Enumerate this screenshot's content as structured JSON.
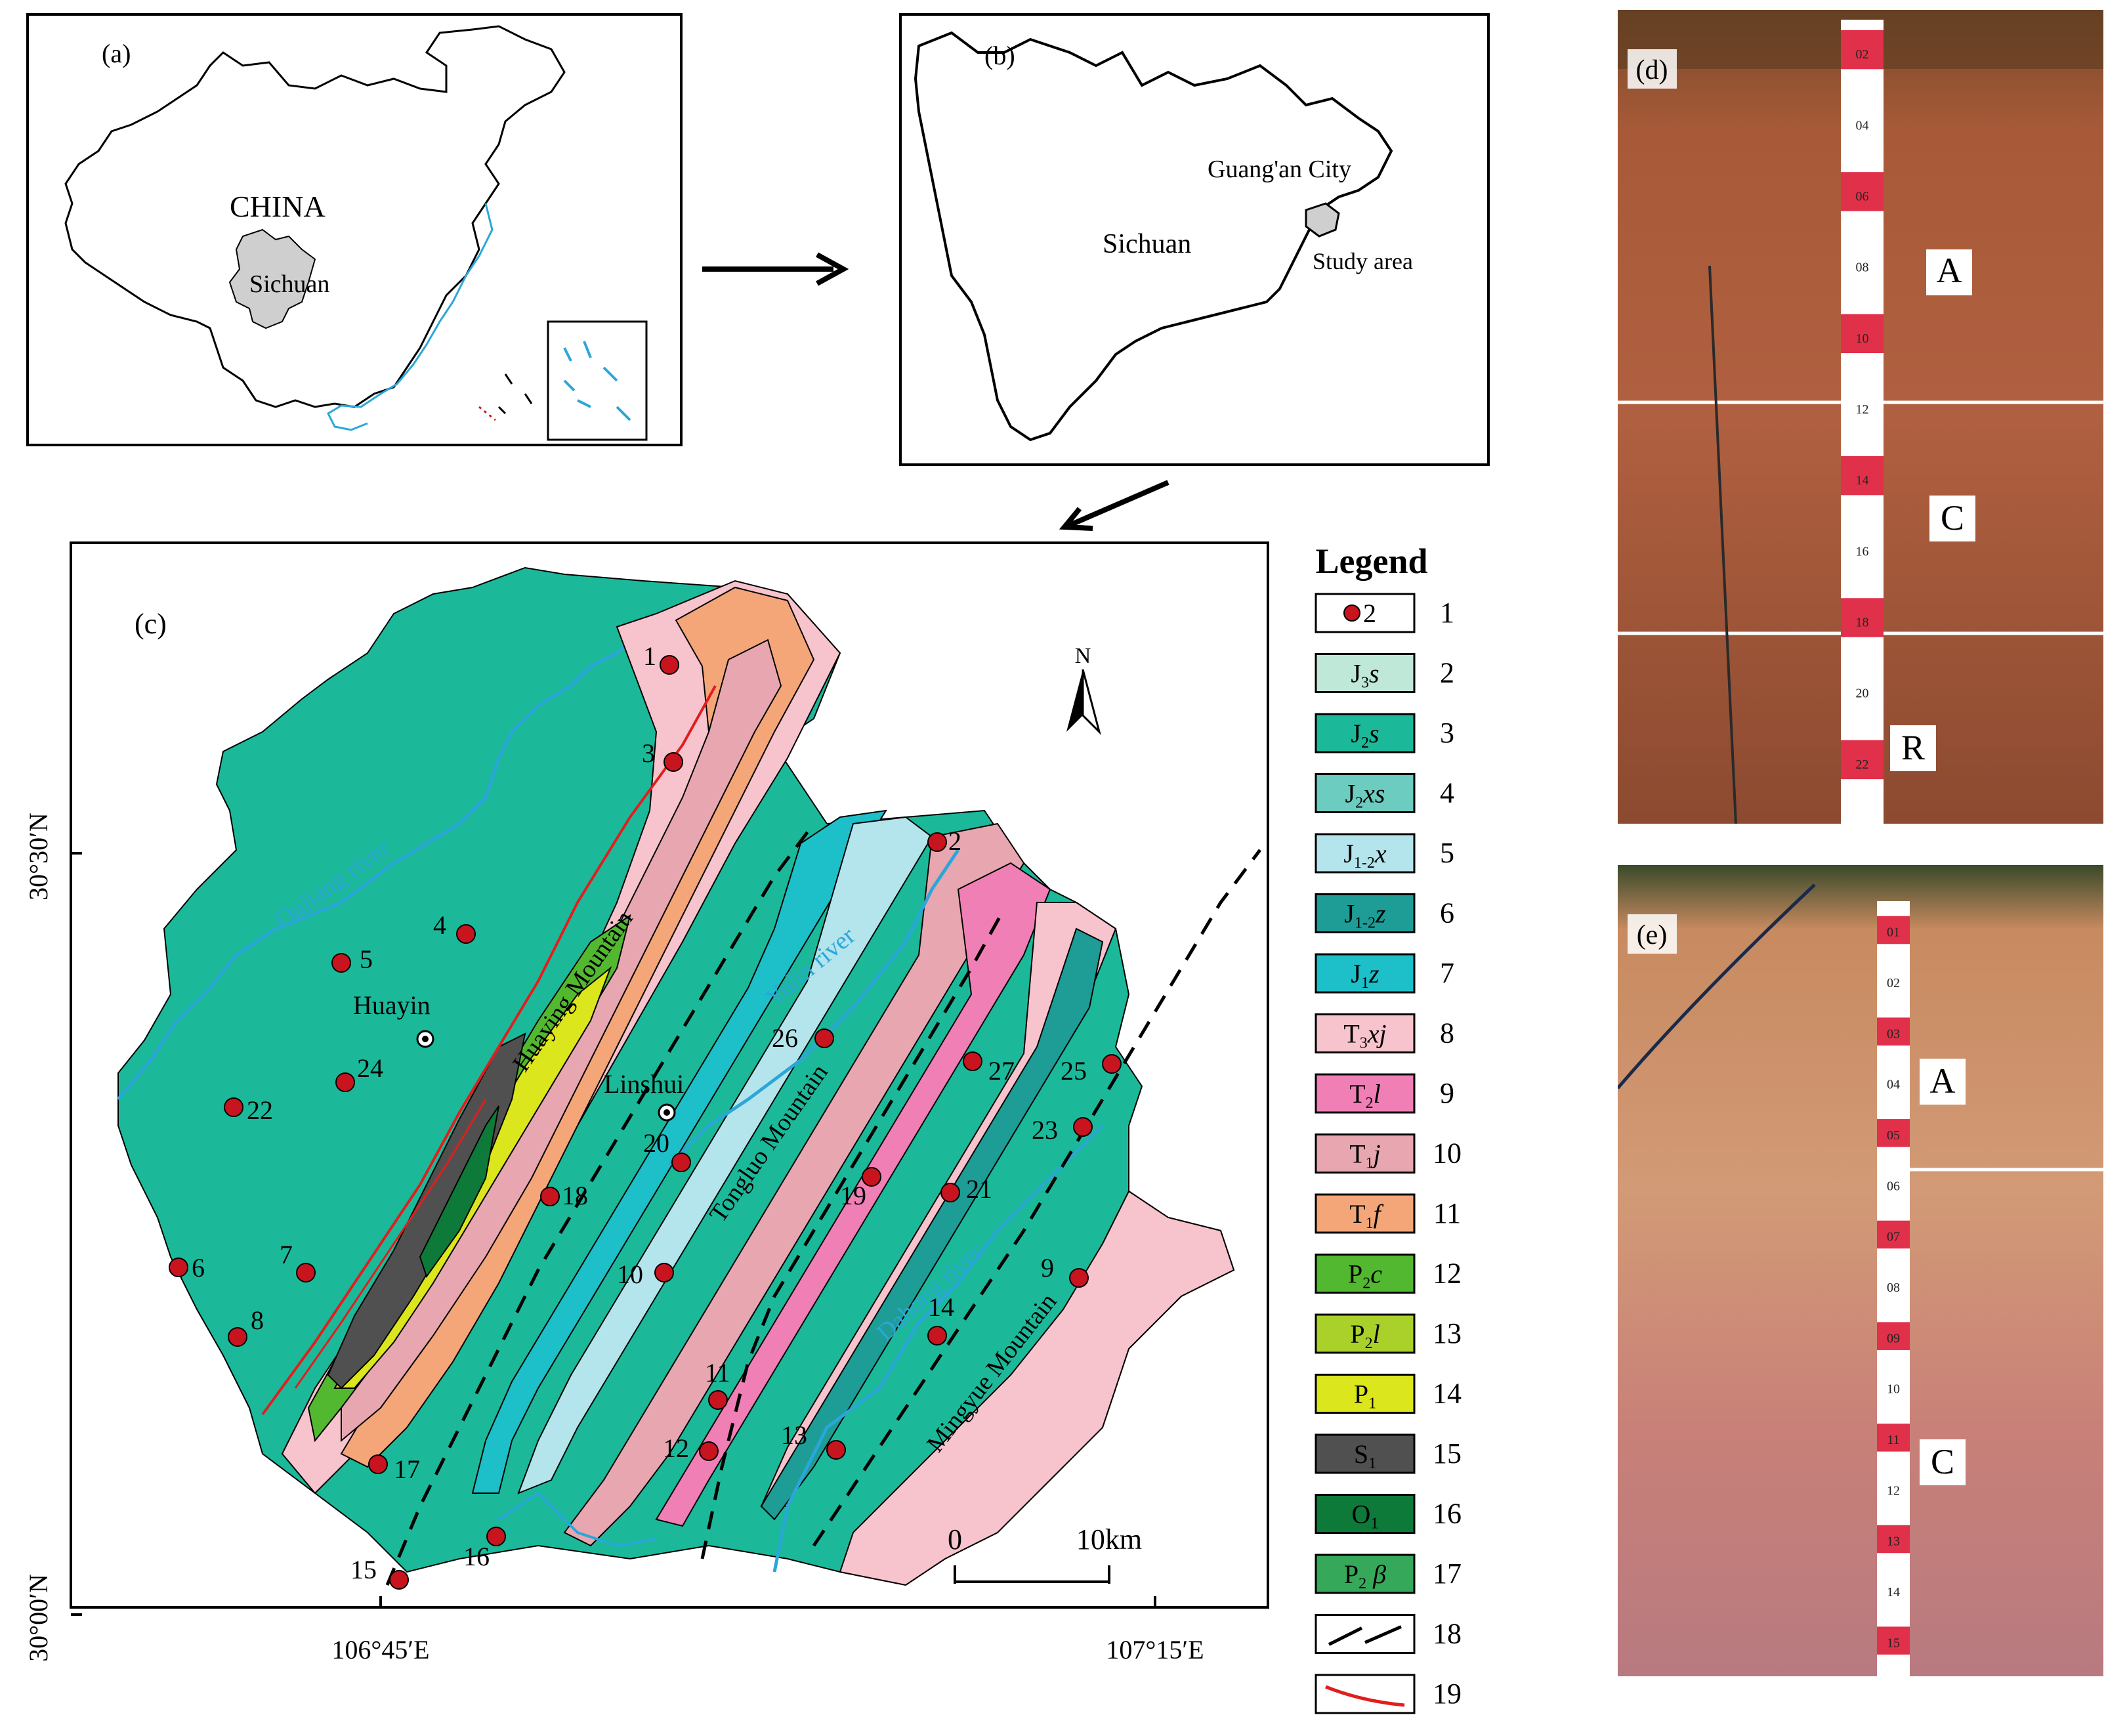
{
  "panel_a": {
    "label": "(a)",
    "country": "CHINA",
    "province": "Sichuan"
  },
  "panel_b": {
    "label": "(b)",
    "province": "Sichuan",
    "city": "Guang'an City",
    "study_area": "Study area"
  },
  "panel_c": {
    "label": "(c)",
    "north": "N",
    "lat_top": "30°30′N",
    "lat_bottom": "30°00′N",
    "lon_left": "106°45′E",
    "lon_right": "107°15′E",
    "scale_zero": "0",
    "scale_len": "10km",
    "rivers": [
      "Qujiang river",
      "Yulin river",
      "Dahong river"
    ],
    "mountains": [
      "Huaying Mountain",
      "Tongluo Mountain",
      "Mingyue Mountain"
    ],
    "towns": [
      "Huayin",
      "Linshui"
    ],
    "sites": [
      "1",
      "2",
      "3",
      "4",
      "5",
      "6",
      "7",
      "8",
      "9",
      "10",
      "11",
      "12",
      "13",
      "14",
      "15",
      "16",
      "17",
      "18",
      "19",
      "20",
      "21",
      "22",
      "23",
      "24",
      "25",
      "26",
      "27"
    ]
  },
  "legend": {
    "title": "Legend",
    "items": [
      {
        "num": "1",
        "type": "dot",
        "symbol": "2",
        "fill": "#ffffff"
      },
      {
        "num": "2",
        "main": "J",
        "sub": "3",
        "tail": "s",
        "fill": "#bfe8d9"
      },
      {
        "num": "3",
        "main": "J",
        "sub": "2",
        "tail": "s",
        "fill": "#1bb99a"
      },
      {
        "num": "4",
        "main": "J",
        "sub": "2",
        "tail": "xs",
        "fill": "#6cccc0"
      },
      {
        "num": "5",
        "main": "J",
        "sub": "1-2",
        "tail": "x",
        "fill": "#b4e4ec"
      },
      {
        "num": "6",
        "main": "J",
        "sub": "1-2",
        "tail": "z",
        "fill": "#1e9c96"
      },
      {
        "num": "7",
        "main": "J",
        "sub": "1",
        "tail": "z",
        "fill": "#1dbfc9"
      },
      {
        "num": "8",
        "main": "T",
        "sub": "3",
        "tail": "xj",
        "fill": "#f7c3cd"
      },
      {
        "num": "9",
        "main": "T",
        "sub": "2",
        "tail": "l",
        "fill": "#f07fb6"
      },
      {
        "num": "10",
        "main": "T",
        "sub": "1",
        "tail": "j",
        "fill": "#e7a6b0"
      },
      {
        "num": "11",
        "main": "T",
        "sub": "1",
        "tail": "f",
        "fill": "#f5a678"
      },
      {
        "num": "12",
        "main": "P",
        "sub": "2",
        "tail": "c",
        "fill": "#52b830"
      },
      {
        "num": "13",
        "main": "P",
        "sub": "2",
        "tail": "l",
        "fill": "#a9d12a"
      },
      {
        "num": "14",
        "main": "P",
        "sub": "1",
        "tail": "",
        "fill": "#dce61c"
      },
      {
        "num": "15",
        "main": "S",
        "sub": "1",
        "tail": "",
        "fill": "#505050"
      },
      {
        "num": "16",
        "main": "O",
        "sub": "1",
        "tail": "",
        "fill": "#0e7a3a"
      },
      {
        "num": "17",
        "main": "P",
        "sub": "2",
        "tail": " β",
        "fill": "#35a85a"
      },
      {
        "num": "18",
        "type": "dash"
      },
      {
        "num": "19",
        "type": "redline"
      }
    ]
  },
  "panel_d": {
    "label": "(d)",
    "horizons": [
      "A",
      "C",
      "R"
    ],
    "ruler_marks": [
      "02",
      "04",
      "06",
      "08",
      "10",
      "12",
      "14",
      "16",
      "18",
      "20",
      "22"
    ]
  },
  "panel_e": {
    "label": "(e)",
    "horizons": [
      "A",
      "C"
    ],
    "ruler_marks": [
      "01",
      "02",
      "03",
      "04",
      "05",
      "06",
      "07",
      "08",
      "09",
      "10",
      "11",
      "12",
      "13",
      "14",
      "15"
    ]
  },
  "colors": {
    "river": "#2aa7d8",
    "site": "#c8141e",
    "fault": "#e01e1e",
    "sichuan_fill": "#cfcfcf"
  }
}
